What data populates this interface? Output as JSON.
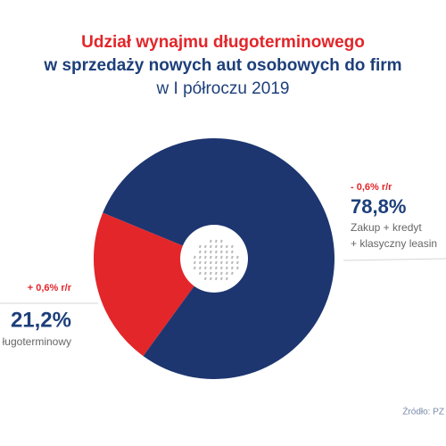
{
  "chart_data": {
    "type": "pie",
    "title": [
      "Udział wynajmu długoterminowego",
      "w sprzedaży nowych aut osobowych do firm",
      "w I półroczu 2019"
    ],
    "values": [
      78.8,
      21.2
    ],
    "value_labels": [
      "78,8%",
      "21,2%"
    ],
    "change_labels": [
      "- 0,6% r/r",
      "+ 0,6% r/r"
    ],
    "label_lines": [
      [
        "Zakup + kredyt",
        "+ klasyczny leasin"
      ],
      [
        "ługoterminowy"
      ]
    ],
    "colors": [
      "#1d3670",
      "#e2262a"
    ],
    "donut": true,
    "source": "Źródło: PZ"
  }
}
